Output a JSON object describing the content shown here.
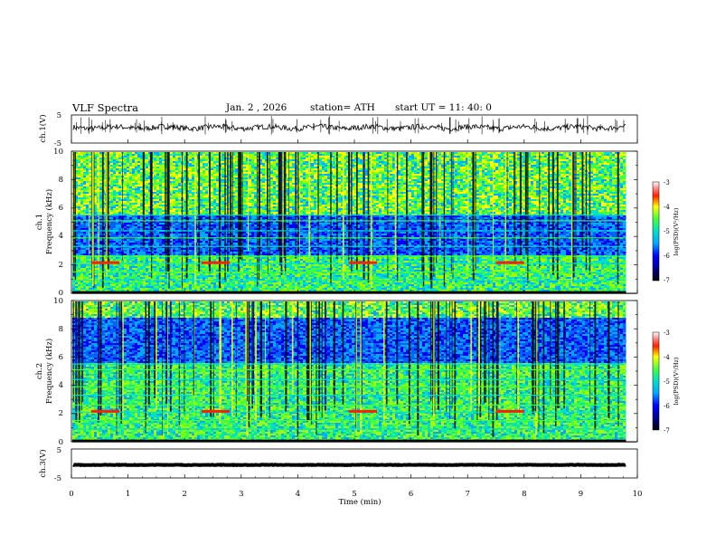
{
  "header": {
    "title": "VLF  Spectra",
    "date": "Jan.  2  , 2026",
    "station": "station= ATH",
    "start_ut": "start  UT  =    11: 40: 0"
  },
  "chart_data": [
    {
      "type": "line",
      "panel": "ch1-waveform",
      "ylabel": "ch.1(V)",
      "ylim": [
        -5,
        5
      ],
      "yticks": [
        "5",
        "-5"
      ],
      "xlim": [
        0,
        10
      ],
      "baseline": 0.5,
      "amplitude": 1.2
    },
    {
      "type": "heatmap",
      "panel": "ch1-spectrogram",
      "ylabel_lines": [
        "ch.1",
        "Frequency  (kHz)"
      ],
      "ylim": [
        0,
        10
      ],
      "yticks": [
        "0",
        "2",
        "4",
        "6",
        "8",
        "10"
      ],
      "xlim": [
        0,
        10
      ],
      "data_end_min": 9.8,
      "colorbar": {
        "label": "log(PSD)(V²/Hz)",
        "range": [
          -7,
          -3
        ],
        "ticks": [
          "-3",
          "-4",
          "-5",
          "-6",
          "-7"
        ]
      },
      "quiet_band_khz": [
        2.8,
        5.6
      ]
    },
    {
      "type": "heatmap",
      "panel": "ch2-spectrogram",
      "ylabel_lines": [
        "ch.2",
        "Frequency  (kHz)"
      ],
      "ylim": [
        0,
        10
      ],
      "yticks": [
        "0",
        "2",
        "4",
        "6",
        "8",
        "10"
      ],
      "xlim": [
        0,
        10
      ],
      "data_end_min": 9.8,
      "colorbar": {
        "label": "log(PSD)(V²/Hz)",
        "range": [
          -7,
          -3
        ],
        "ticks": [
          "-3",
          "-4",
          "-5",
          "-6",
          "-7"
        ]
      },
      "quiet_band_khz": [
        5.6,
        8.8
      ]
    },
    {
      "type": "line",
      "panel": "ch3-waveform",
      "ylabel": "ch.3(V)",
      "ylim": [
        -5,
        5
      ],
      "yticks": [
        "5",
        "-5"
      ],
      "xlim": [
        0,
        10
      ],
      "baseline": -0.5,
      "amplitude": 0.1
    }
  ],
  "xaxis": {
    "label": "Time  (min)",
    "ticks": [
      "0",
      "1",
      "2",
      "3",
      "4",
      "5",
      "6",
      "7",
      "8",
      "9",
      "10"
    ]
  }
}
